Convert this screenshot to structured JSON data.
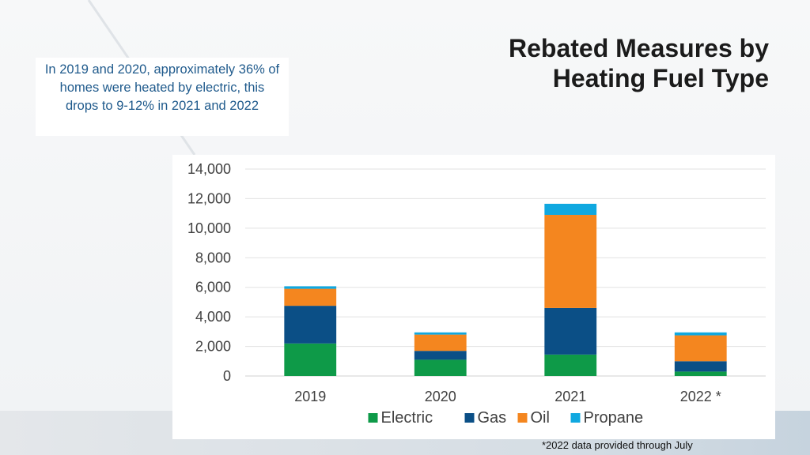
{
  "slide": {
    "title": "Rebated Measures by Heating Fuel Type",
    "callout": "In 2019 and 2020, approximately 36% of homes were heated by electric, this drops to 9-12% in 2021 and 2022",
    "footnote": "*2022 data provided through July"
  },
  "chart_data": {
    "type": "bar",
    "stacked": true,
    "categories": [
      "2019",
      "2020",
      "2021",
      "2022 *"
    ],
    "series": [
      {
        "name": "Electric",
        "color": "#0e9a48",
        "values": [
          2200,
          1100,
          1450,
          300
        ]
      },
      {
        "name": "Gas",
        "color": "#0b4f86",
        "values": [
          2550,
          600,
          3150,
          700
        ]
      },
      {
        "name": "Oil",
        "color": "#f4861f",
        "values": [
          1150,
          1100,
          6300,
          1750
        ]
      },
      {
        "name": "Propane",
        "color": "#10a8e0",
        "values": [
          170,
          150,
          750,
          200
        ]
      }
    ],
    "ylim": [
      0,
      14000
    ],
    "yticks": [
      "0",
      "2,000",
      "4,000",
      "6,000",
      "8,000",
      "10,000",
      "12,000",
      "14,000"
    ],
    "grid": true,
    "legend": "bottom"
  }
}
